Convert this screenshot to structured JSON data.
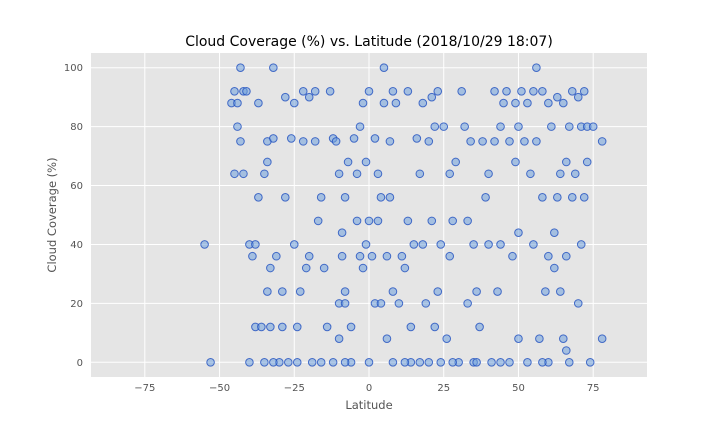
{
  "chart_data": {
    "type": "scatter",
    "title": "Cloud Coverage (%) vs. Latitude (2018/10/29 18:07)",
    "xlabel": "Latitude",
    "ylabel": "Cloud Coverage (%)",
    "xlim": [
      -93,
      93
    ],
    "ylim": [
      -5,
      105
    ],
    "xticks": [
      "-75",
      "-50",
      "-25",
      "0",
      "25",
      "50",
      "75"
    ],
    "yticks": [
      "0",
      "20",
      "40",
      "60",
      "80",
      "100"
    ],
    "xtick_values": [
      -75,
      -50,
      -25,
      0,
      25,
      50,
      75
    ],
    "ytick_values": [
      0,
      20,
      40,
      60,
      80,
      100
    ],
    "grid": true,
    "colors": {
      "plot_background": "#e5e5e5",
      "grid": "#ffffff",
      "marker_fill": "#6fa0dc",
      "marker_edge": "#1f4fbf"
    },
    "points": [
      [
        -55,
        40
      ],
      [
        -53,
        0
      ],
      [
        -46,
        88
      ],
      [
        -45,
        92
      ],
      [
        -45,
        64
      ],
      [
        -44,
        88
      ],
      [
        -44,
        80
      ],
      [
        -43,
        100
      ],
      [
        -43,
        75
      ],
      [
        -42,
        92
      ],
      [
        -42,
        64
      ],
      [
        -41,
        92
      ],
      [
        -40,
        40
      ],
      [
        -40,
        0
      ],
      [
        -39,
        36
      ],
      [
        -38,
        40
      ],
      [
        -38,
        12
      ],
      [
        -37,
        88
      ],
      [
        -37,
        56
      ],
      [
        -36,
        12
      ],
      [
        -35,
        64
      ],
      [
        -35,
        0
      ],
      [
        -34,
        75
      ],
      [
        -34,
        68
      ],
      [
        -34,
        24
      ],
      [
        -33,
        32
      ],
      [
        -33,
        12
      ],
      [
        -32,
        100
      ],
      [
        -32,
        76
      ],
      [
        -31,
        36
      ],
      [
        -30,
        0
      ],
      [
        -29,
        12
      ],
      [
        -29,
        24
      ],
      [
        -28,
        90
      ],
      [
        -28,
        56
      ],
      [
        -27,
        0
      ],
      [
        -26,
        76
      ],
      [
        -25,
        40
      ],
      [
        -25,
        88
      ],
      [
        -24,
        12
      ],
      [
        -23,
        24
      ],
      [
        -22,
        92
      ],
      [
        -22,
        75
      ],
      [
        -21,
        32
      ],
      [
        -20,
        90
      ],
      [
        -20,
        36
      ],
      [
        -19,
        0
      ],
      [
        -18,
        92
      ],
      [
        -18,
        75
      ],
      [
        -17,
        48
      ],
      [
        -16,
        56
      ],
      [
        -15,
        32
      ],
      [
        -14,
        12
      ],
      [
        -13,
        92
      ],
      [
        -12,
        76
      ],
      [
        -12,
        0
      ],
      [
        -11,
        75
      ],
      [
        -10,
        64
      ],
      [
        -10,
        20
      ],
      [
        -10,
        8
      ],
      [
        -9,
        44
      ],
      [
        -9,
        36
      ],
      [
        -8,
        56
      ],
      [
        -8,
        24
      ],
      [
        -8,
        20
      ],
      [
        -7,
        68
      ],
      [
        -6,
        12
      ],
      [
        -6,
        0
      ],
      [
        -5,
        76
      ],
      [
        -4,
        64
      ],
      [
        -4,
        48
      ],
      [
        -3,
        80
      ],
      [
        -3,
        36
      ],
      [
        -2,
        88
      ],
      [
        -2,
        32
      ],
      [
        -1,
        68
      ],
      [
        -1,
        40
      ],
      [
        0,
        92
      ],
      [
        0,
        48
      ],
      [
        0,
        0
      ],
      [
        1,
        36
      ],
      [
        2,
        76
      ],
      [
        2,
        20
      ],
      [
        3,
        64
      ],
      [
        3,
        48
      ],
      [
        4,
        56
      ],
      [
        4,
        20
      ],
      [
        5,
        88
      ],
      [
        5,
        100
      ],
      [
        6,
        36
      ],
      [
        6,
        8
      ],
      [
        7,
        75
      ],
      [
        7,
        56
      ],
      [
        8,
        92
      ],
      [
        8,
        24
      ],
      [
        8,
        0
      ],
      [
        9,
        88
      ],
      [
        10,
        20
      ],
      [
        11,
        36
      ],
      [
        12,
        32
      ],
      [
        13,
        92
      ],
      [
        13,
        48
      ],
      [
        14,
        12
      ],
      [
        14,
        0
      ],
      [
        15,
        40
      ],
      [
        16,
        76
      ],
      [
        17,
        64
      ],
      [
        17,
        0
      ],
      [
        18,
        88
      ],
      [
        18,
        40
      ],
      [
        19,
        20
      ],
      [
        20,
        75
      ],
      [
        21,
        90
      ],
      [
        21,
        48
      ],
      [
        22,
        80
      ],
      [
        22,
        12
      ],
      [
        23,
        92
      ],
      [
        23,
        24
      ],
      [
        24,
        40
      ],
      [
        24,
        0
      ],
      [
        25,
        80
      ],
      [
        26,
        8
      ],
      [
        27,
        36
      ],
      [
        27,
        64
      ],
      [
        28,
        48
      ],
      [
        29,
        68
      ],
      [
        30,
        0
      ],
      [
        31,
        92
      ],
      [
        32,
        80
      ],
      [
        33,
        48
      ],
      [
        33,
        20
      ],
      [
        34,
        75
      ],
      [
        35,
        40
      ],
      [
        35,
        0
      ],
      [
        36,
        24
      ],
      [
        37,
        12
      ],
      [
        38,
        75
      ],
      [
        39,
        56
      ],
      [
        40,
        64
      ],
      [
        40,
        40
      ],
      [
        41,
        0
      ],
      [
        42,
        92
      ],
      [
        42,
        75
      ],
      [
        43,
        24
      ],
      [
        44,
        40
      ],
      [
        44,
        80
      ],
      [
        45,
        88
      ],
      [
        46,
        92
      ],
      [
        47,
        75
      ],
      [
        47,
        0
      ],
      [
        48,
        36
      ],
      [
        49,
        68
      ],
      [
        49,
        88
      ],
      [
        50,
        80
      ],
      [
        50,
        44
      ],
      [
        50,
        8
      ],
      [
        51,
        92
      ],
      [
        52,
        75
      ],
      [
        53,
        88
      ],
      [
        53,
        0
      ],
      [
        54,
        64
      ],
      [
        55,
        92
      ],
      [
        55,
        40
      ],
      [
        56,
        100
      ],
      [
        56,
        75
      ],
      [
        57,
        8
      ],
      [
        58,
        92
      ],
      [
        58,
        56
      ],
      [
        59,
        24
      ],
      [
        60,
        88
      ],
      [
        60,
        36
      ],
      [
        60,
        0
      ],
      [
        61,
        80
      ],
      [
        62,
        44
      ],
      [
        62,
        32
      ],
      [
        63,
        90
      ],
      [
        63,
        56
      ],
      [
        64,
        64
      ],
      [
        64,
        24
      ],
      [
        65,
        88
      ],
      [
        65,
        8
      ],
      [
        66,
        68
      ],
      [
        66,
        36
      ],
      [
        67,
        80
      ],
      [
        67,
        0
      ],
      [
        68,
        92
      ],
      [
        68,
        56
      ],
      [
        69,
        64
      ],
      [
        70,
        90
      ],
      [
        70,
        20
      ],
      [
        71,
        40
      ],
      [
        71,
        80
      ],
      [
        72,
        56
      ],
      [
        72,
        92
      ],
      [
        73,
        68
      ],
      [
        73,
        80
      ],
      [
        74,
        0
      ],
      [
        75,
        80
      ],
      [
        78,
        75
      ],
      [
        78,
        8
      ],
      [
        66,
        4
      ],
      [
        58,
        0
      ],
      [
        44,
        0
      ],
      [
        36,
        0
      ],
      [
        28,
        0
      ],
      [
        20,
        0
      ],
      [
        12,
        0
      ],
      [
        -8,
        0
      ],
      [
        -16,
        0
      ],
      [
        -24,
        0
      ],
      [
        -32,
        0
      ]
    ]
  }
}
